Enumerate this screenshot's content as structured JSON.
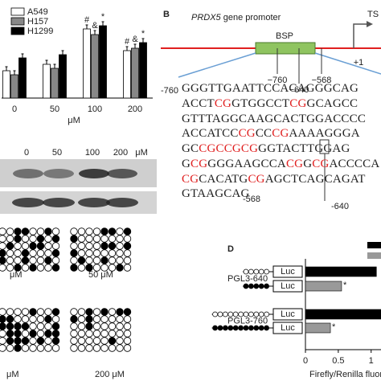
{
  "panel_a": {
    "categories": [
      "0",
      "50",
      "100",
      "200"
    ],
    "unit": "μM",
    "ylim": [
      0,
      100
    ],
    "series": [
      {
        "name": "A549",
        "color": "#ffffff",
        "values": [
          34,
          42,
          86,
          59
        ]
      },
      {
        "name": "H157",
        "color": "#888888",
        "values": [
          29,
          37,
          79,
          62
        ]
      },
      {
        "name": "H1299",
        "color": "#000000",
        "values": [
          50,
          54,
          90,
          69
        ]
      }
    ],
    "significance": [
      null,
      null,
      [
        "#",
        "&",
        "*"
      ],
      [
        "#",
        "&",
        "*"
      ]
    ]
  },
  "blot": {
    "lanes": [
      "0",
      "50",
      "100",
      "200"
    ],
    "unit": "μM"
  },
  "methylation": {
    "labels": [
      "μM",
      "50 μM",
      "μM",
      "200 μM"
    ]
  },
  "panel_b": {
    "letter": "B",
    "gene": "PRDX5",
    "title_rest": " gene promoter",
    "tss": "TS",
    "bsp": "BSP",
    "positions": [
      "−760",
      "−640",
      "−568",
      "+1"
    ],
    "sequence": {
      "start": "-760",
      "end": "-568",
      "marker": "-640",
      "lines": [
        [
          {
            "text": "GGGTTGAATTCCACAGGGCAG",
            "cpg": false
          }
        ],
        [
          {
            "text": "ACCT",
            "cpg": false
          },
          {
            "text": "CG",
            "cpg": true
          },
          {
            "text": "GTGGCCT",
            "cpg": false
          },
          {
            "text": "CG",
            "cpg": true
          },
          {
            "text": "GCAGCC",
            "cpg": false
          }
        ],
        [
          {
            "text": "GTTTAGGCAAGCACTGGACCCC",
            "cpg": false
          }
        ],
        [
          {
            "text": "ACCATCC",
            "cpg": false
          },
          {
            "text": "CG",
            "cpg": true
          },
          {
            "text": "CC",
            "cpg": false
          },
          {
            "text": "CG",
            "cpg": true
          },
          {
            "text": "AAAAGGGA",
            "cpg": false
          }
        ],
        [
          {
            "text": "GC",
            "cpg": false
          },
          {
            "text": "CGCCGCG",
            "cpg": true
          },
          {
            "text": "GGTACTTGGAG",
            "cpg": false
          }
        ],
        [
          {
            "text": "G",
            "cpg": false
          },
          {
            "text": "CG",
            "cpg": true
          },
          {
            "text": "GGGAAGCCA",
            "cpg": false
          },
          {
            "text": "CG",
            "cpg": true
          },
          {
            "text": "G",
            "cpg": false
          },
          {
            "text": "CG",
            "cpg": true
          },
          {
            "text": "ACCCCA",
            "cpg": false
          }
        ],
        [
          {
            "text": "CG",
            "cpg": true
          },
          {
            "text": "CACATG",
            "cpg": false
          },
          {
            "text": "CG",
            "cpg": true
          },
          {
            "text": "AGCTCAGCAGAT",
            "cpg": false
          }
        ],
        [
          {
            "text": "GTAAGCAG",
            "cpg": false
          }
        ]
      ]
    }
  },
  "panel_d": {
    "letter": "D",
    "xlim": [
      0,
      1.15
    ],
    "xticks": [
      0,
      0.5,
      1
    ],
    "xlabel": "Firefly/Renilla fluore",
    "constructs": [
      {
        "label": "PGL3-640",
        "boxes": [
          "Luc",
          "Luc"
        ]
      },
      {
        "label": "PGL3-760",
        "boxes": [
          "Luc",
          "Luc"
        ]
      }
    ],
    "series": [
      {
        "color": "#000000",
        "values": [
          1.08,
          1.15
        ]
      },
      {
        "color": "#999999",
        "values": [
          0.55,
          0.38
        ],
        "markers": [
          "*",
          "*"
        ]
      }
    ]
  }
}
